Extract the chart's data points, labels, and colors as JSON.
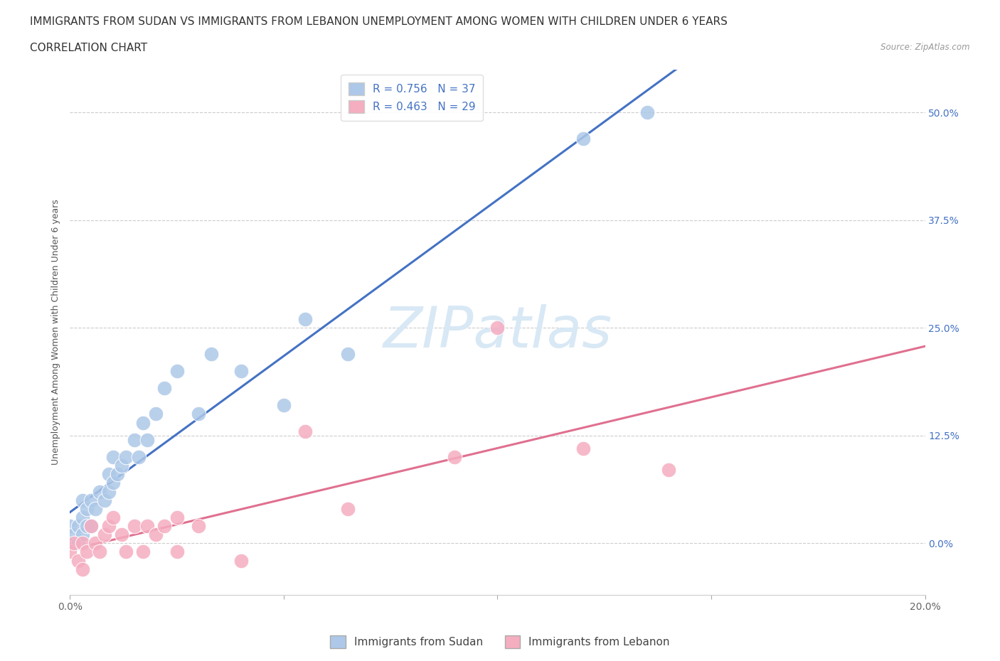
{
  "title_line1": "IMMIGRANTS FROM SUDAN VS IMMIGRANTS FROM LEBANON UNEMPLOYMENT AMONG WOMEN WITH CHILDREN UNDER 6 YEARS",
  "title_line2": "CORRELATION CHART",
  "source": "Source: ZipAtlas.com",
  "ylabel": "Unemployment Among Women with Children Under 6 years",
  "xlim": [
    0.0,
    0.2
  ],
  "ylim": [
    -0.06,
    0.55
  ],
  "yticks": [
    0.0,
    0.125,
    0.25,
    0.375,
    0.5
  ],
  "ytick_labels": [
    "0.0%",
    "12.5%",
    "25.0%",
    "37.5%",
    "50.0%"
  ],
  "xticks": [
    0.0,
    0.05,
    0.1,
    0.15,
    0.2
  ],
  "xtick_labels": [
    "0.0%",
    "",
    "",
    "",
    "20.0%"
  ],
  "sudan_color": "#adc8e8",
  "lebanon_color": "#f5adc0",
  "sudan_line_color": "#4472c4",
  "lebanon_line_color": "#e07090",
  "sudan_R": 0.756,
  "sudan_N": 37,
  "lebanon_R": 0.463,
  "lebanon_N": 29,
  "watermark": "ZIPatlas",
  "watermark_color": "#d8e8f5",
  "legend_label_sudan": "Immigrants from Sudan",
  "legend_label_lebanon": "Immigrants from Lebanon",
  "sudan_x": [
    0.0,
    0.0,
    0.001,
    0.002,
    0.002,
    0.003,
    0.003,
    0.003,
    0.004,
    0.004,
    0.005,
    0.005,
    0.006,
    0.007,
    0.008,
    0.009,
    0.009,
    0.01,
    0.01,
    0.011,
    0.012,
    0.013,
    0.015,
    0.016,
    0.017,
    0.018,
    0.02,
    0.022,
    0.025,
    0.03,
    0.033,
    0.04,
    0.05,
    0.055,
    0.065,
    0.12,
    0.135
  ],
  "sudan_y": [
    0.0,
    0.02,
    0.01,
    0.0,
    0.02,
    0.01,
    0.03,
    0.05,
    0.02,
    0.04,
    0.02,
    0.05,
    0.04,
    0.06,
    0.05,
    0.06,
    0.08,
    0.07,
    0.1,
    0.08,
    0.09,
    0.1,
    0.12,
    0.1,
    0.14,
    0.12,
    0.15,
    0.18,
    0.2,
    0.15,
    0.22,
    0.2,
    0.16,
    0.26,
    0.22,
    0.47,
    0.5
  ],
  "lebanon_x": [
    0.0,
    0.001,
    0.002,
    0.003,
    0.003,
    0.004,
    0.005,
    0.006,
    0.007,
    0.008,
    0.009,
    0.01,
    0.012,
    0.013,
    0.015,
    0.017,
    0.018,
    0.02,
    0.022,
    0.025,
    0.025,
    0.03,
    0.04,
    0.055,
    0.065,
    0.09,
    0.1,
    0.12,
    0.14
  ],
  "lebanon_y": [
    -0.01,
    0.0,
    -0.02,
    0.0,
    -0.03,
    -0.01,
    0.02,
    0.0,
    -0.01,
    0.01,
    0.02,
    0.03,
    0.01,
    -0.01,
    0.02,
    -0.01,
    0.02,
    0.01,
    0.02,
    -0.01,
    0.03,
    0.02,
    -0.02,
    0.13,
    0.04,
    0.1,
    0.25,
    0.11,
    0.085
  ],
  "title_fontsize": 11,
  "axis_label_fontsize": 9,
  "tick_fontsize": 10,
  "legend_fontsize": 11,
  "right_tick_color": "#4472c4",
  "background_color": "#ffffff"
}
